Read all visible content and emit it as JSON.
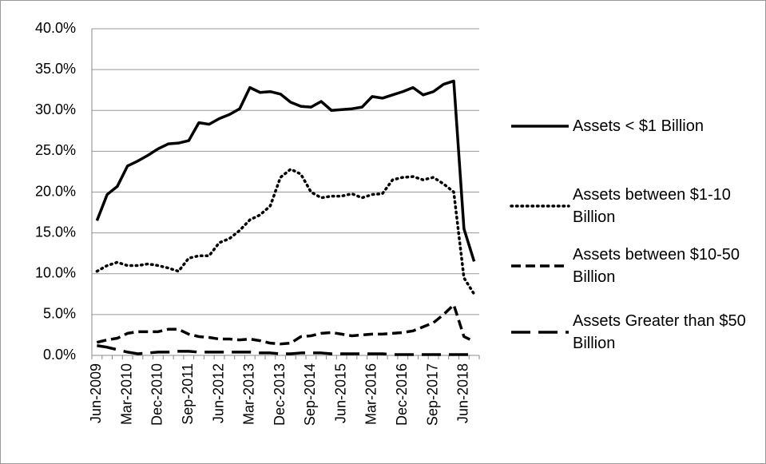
{
  "chart_data": {
    "type": "line",
    "categories": [
      "Jun-2009",
      null,
      null,
      "Mar-2010",
      null,
      null,
      "Dec-2010",
      null,
      null,
      "Sep-2011",
      null,
      null,
      "Jun-2012",
      null,
      null,
      "Mar-2013",
      null,
      null,
      "Dec-2013",
      null,
      null,
      "Sep-2014",
      null,
      null,
      "Jun-2015",
      null,
      null,
      "Mar-2016",
      null,
      null,
      "Dec-2016",
      null,
      null,
      "Sep-2017",
      null,
      null,
      "Jun-2018",
      null
    ],
    "series": [
      {
        "name": "Assets < $1 Billion",
        "color": "#000000",
        "style": "solid",
        "values": [
          16.5,
          19.7,
          20.7,
          23.2,
          23.8,
          24.5,
          25.3,
          25.9,
          26.0,
          26.3,
          28.5,
          28.3,
          29.0,
          29.5,
          30.2,
          32.8,
          32.2,
          32.3,
          32.0,
          31.0,
          30.5,
          30.4,
          31.1,
          30.0,
          30.1,
          30.2,
          30.4,
          31.7,
          31.5,
          31.9,
          32.3,
          32.8,
          31.9,
          32.3,
          33.2,
          33.6,
          15.5,
          11.5
        ]
      },
      {
        "name": "Assets between $1-10 Billion",
        "color": "#000000",
        "style": "dotted",
        "values": [
          10.3,
          11.0,
          11.4,
          11.0,
          11.0,
          11.2,
          11.0,
          10.7,
          10.3,
          11.9,
          12.2,
          12.2,
          13.8,
          14.3,
          15.3,
          16.6,
          17.2,
          18.3,
          21.8,
          22.8,
          22.2,
          20.0,
          19.3,
          19.5,
          19.5,
          19.8,
          19.3,
          19.7,
          19.8,
          21.5,
          21.8,
          21.9,
          21.5,
          21.8,
          21.0,
          20.0,
          9.5,
          7.5
        ]
      },
      {
        "name": "Assets between $10-50 Billion",
        "color": "#000000",
        "style": "dashed",
        "values": [
          1.6,
          1.9,
          2.1,
          2.7,
          2.9,
          2.9,
          2.9,
          3.2,
          3.2,
          2.6,
          2.3,
          2.2,
          2.0,
          2.0,
          1.9,
          2.0,
          1.8,
          1.5,
          1.4,
          1.5,
          2.3,
          2.4,
          2.7,
          2.8,
          2.6,
          2.4,
          2.5,
          2.6,
          2.6,
          2.7,
          2.8,
          3.0,
          3.5,
          4.0,
          5.0,
          6.2,
          2.3,
          1.7
        ]
      },
      {
        "name": "Assets Greater than $50 Billion",
        "color": "#000000",
        "style": "longdash",
        "values": [
          1.2,
          1.0,
          0.7,
          0.4,
          0.2,
          0.3,
          0.4,
          0.4,
          0.5,
          0.5,
          0.4,
          0.4,
          0.4,
          0.4,
          0.4,
          0.4,
          0.3,
          0.3,
          0.2,
          0.2,
          0.3,
          0.3,
          0.3,
          0.2,
          0.2,
          0.2,
          0.2,
          0.2,
          0.2,
          0.1,
          0.1,
          0.1,
          0.1,
          0.1,
          0.1,
          0.1,
          0.1,
          0.1
        ]
      }
    ],
    "ylim": [
      0,
      40
    ],
    "yticks": [
      {
        "value": 0,
        "label": "0.0%"
      },
      {
        "value": 5,
        "label": "5.0%"
      },
      {
        "value": 10,
        "label": "10.0%"
      },
      {
        "value": 15,
        "label": "15.0%"
      },
      {
        "value": 20,
        "label": "20.0%"
      },
      {
        "value": 25,
        "label": "25.0%"
      },
      {
        "value": 30,
        "label": "30.0%"
      },
      {
        "value": 35,
        "label": "35.0%"
      },
      {
        "value": 40,
        "label": "40.0%"
      }
    ],
    "grid": true,
    "legend": "right"
  }
}
